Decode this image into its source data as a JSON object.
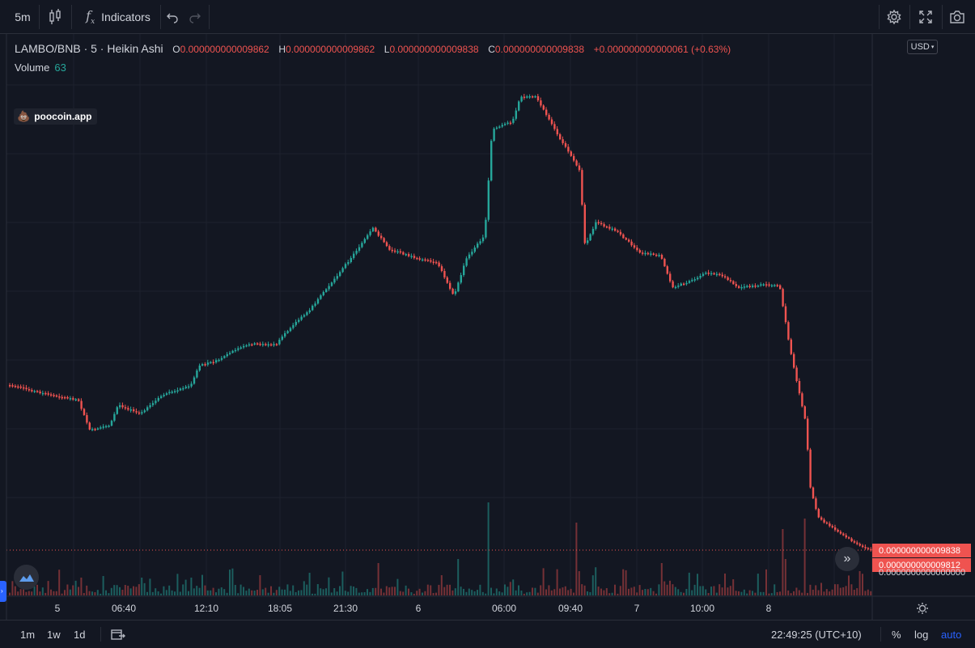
{
  "toolbar": {
    "interval": "5m",
    "indicators_label": "Indicators"
  },
  "legend": {
    "symbol": "LAMBO/BNB · 5 · Heikin Ashi",
    "open_key": "O",
    "open": "0.000000000009862",
    "high_key": "H",
    "high": "0.000000000009862",
    "low_key": "L",
    "low": "0.000000000009838",
    "close_key": "C",
    "close": "0.000000000009838",
    "change": "+0.000000000000061 (+0.63%)",
    "volume_label": "Volume",
    "volume_value": "63"
  },
  "badge": {
    "label": "poocoin.app"
  },
  "currency": "USD",
  "price_labels": {
    "last": "0.000000000009838",
    "second": "0.000000000009812",
    "axis": "0.0000000000000000"
  },
  "time_axis": {
    "labels": [
      "5",
      "06:40",
      "12:10",
      "18:05",
      "21:30",
      "6",
      "06:00",
      "09:40",
      "7",
      "10:00",
      "8"
    ]
  },
  "bottom": {
    "ranges": [
      "1m",
      "1w",
      "1d"
    ],
    "clock": "22:49:25 (UTC+10)",
    "percent": "%",
    "log": "log",
    "auto": "auto"
  },
  "colors": {
    "up": "#26a69a",
    "down": "#ef5350",
    "background": "#131722",
    "accent": "#2962ff"
  },
  "chart_data": {
    "type": "candlestick",
    "style": "Heikin Ashi",
    "interval": "5",
    "symbol": "LAMBO/BNB",
    "grid": true,
    "close_path": [
      [
        "5",
        470
      ],
      [
        "06:40",
        530
      ],
      [
        "12:10",
        445
      ],
      [
        "18:05",
        425
      ],
      [
        "21:30",
        330
      ],
      [
        "6",
        365
      ],
      [
        "06:00",
        155
      ],
      [
        "peak",
        115
      ],
      [
        "09:40",
        310
      ],
      [
        "7",
        300
      ],
      [
        "10:00",
        350
      ],
      [
        "8",
        350
      ],
      [
        "last",
        680
      ]
    ],
    "volume_peaks": [
      0.15,
      0.2,
      0.15,
      0.3,
      0.35,
      0.4,
      1.0,
      0.85,
      0.35,
      0.3,
      0.7,
      0.9
    ]
  }
}
